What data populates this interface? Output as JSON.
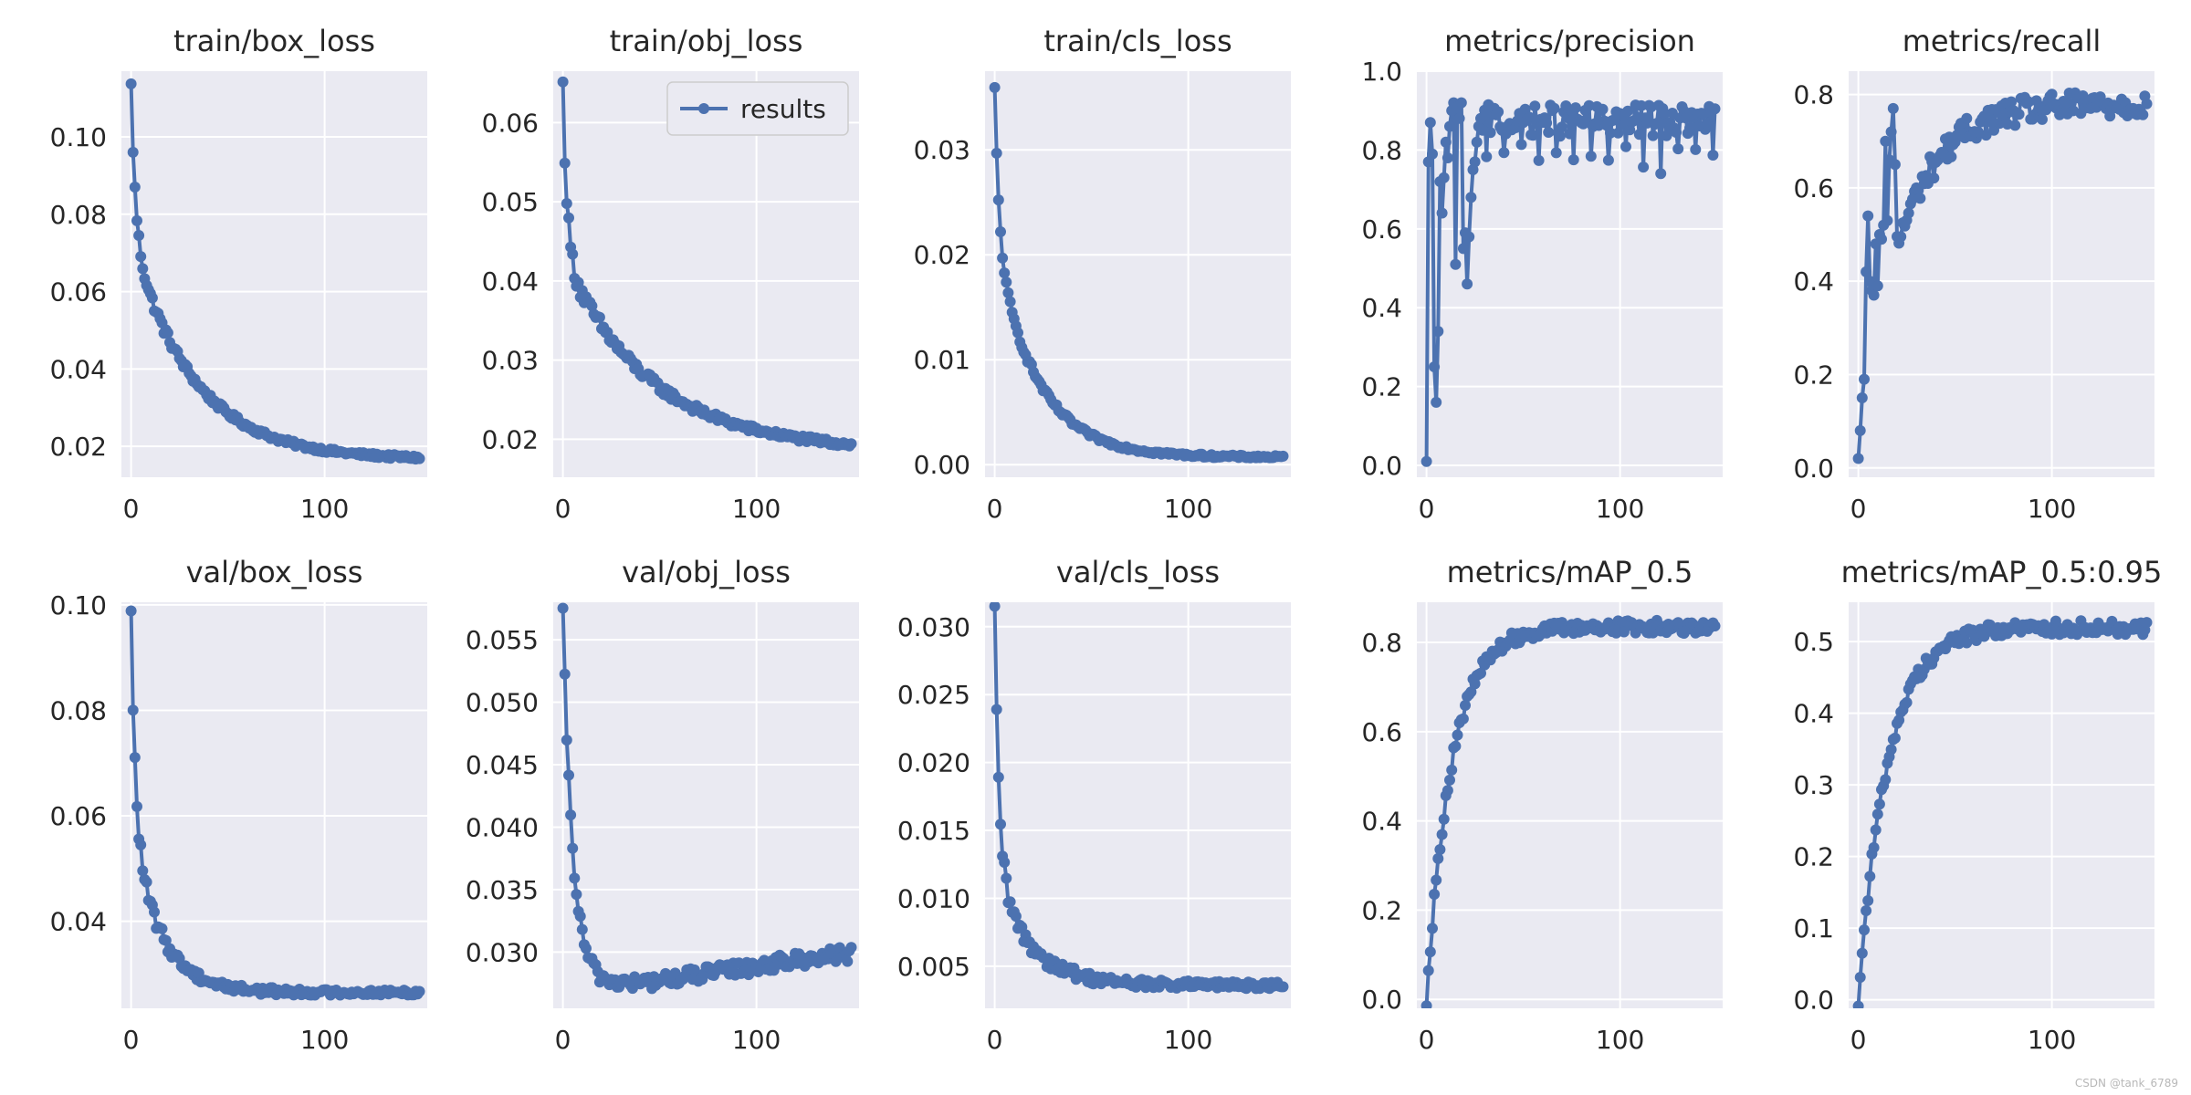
{
  "figure": {
    "watermark": "CSDN @tank_6789",
    "line_color": "#4c72b0",
    "axes_bg": "#eaeaf2",
    "grid_color": "#ffffff"
  },
  "chart_data": [
    {
      "type": "line",
      "title": "train/box_loss",
      "xlim": [
        -5,
        153
      ],
      "ylim": [
        0.012,
        0.117
      ],
      "xticks": [
        0,
        100
      ],
      "yticks": [
        0.02,
        0.04,
        0.06,
        0.08,
        0.1
      ],
      "ytick_labels": [
        "0.02",
        "0.04",
        "0.06",
        "0.08",
        "0.10"
      ],
      "series": [
        {
          "name": "results",
          "shape": "decay",
          "start": 0.113,
          "end": 0.0165,
          "knee": 0.074,
          "tau": 32,
          "noise": 0.0012,
          "n": 150
        }
      ]
    },
    {
      "type": "line",
      "title": "train/obj_loss",
      "xlim": [
        -5,
        153
      ],
      "ylim": [
        0.0152,
        0.0665
      ],
      "xticks": [
        0,
        100
      ],
      "yticks": [
        0.02,
        0.03,
        0.04,
        0.05,
        0.06
      ],
      "ytick_labels": [
        "0.02",
        "0.03",
        "0.04",
        "0.05",
        "0.06"
      ],
      "legend": {
        "label": "results",
        "location": "upper right"
      },
      "series": [
        {
          "name": "results",
          "shape": "decay",
          "start": 0.0645,
          "end": 0.0185,
          "knee": 0.043,
          "tau": 45,
          "noise": 0.0009,
          "n": 150
        }
      ]
    },
    {
      "type": "line",
      "title": "train/cls_loss",
      "xlim": [
        -5,
        153
      ],
      "ylim": [
        -0.0012,
        0.0375
      ],
      "xticks": [
        0,
        100
      ],
      "yticks": [
        0.0,
        0.01,
        0.02,
        0.03
      ],
      "ytick_labels": [
        "0.00",
        "0.01",
        "0.02",
        "0.03"
      ],
      "series": [
        {
          "name": "results",
          "shape": "decay",
          "start": 0.0357,
          "end": 0.0007,
          "knee": 0.021,
          "tau": 22,
          "noise": 0.0003,
          "n": 150
        }
      ]
    },
    {
      "type": "line",
      "title": "metrics/precision",
      "xlim": [
        -5,
        153
      ],
      "ylim": [
        -0.03,
        1.0
      ],
      "xticks": [
        0,
        100
      ],
      "yticks": [
        0.0,
        0.2,
        0.4,
        0.6,
        0.8,
        1.0
      ],
      "ytick_labels": [
        "0.0",
        "0.2",
        "0.4",
        "0.6",
        "0.8",
        "1.0"
      ],
      "series": [
        {
          "name": "results",
          "shape": "volatile",
          "start": 0.01,
          "plateau": 0.875,
          "noise": 0.04,
          "n": 150,
          "early": [
            0.01,
            0.77,
            0.87,
            0.79,
            0.25,
            0.16,
            0.34,
            0.72,
            0.64,
            0.73,
            0.82,
            0.78,
            0.86,
            0.9,
            0.92,
            0.51,
            0.91,
            0.88,
            0.92,
            0.55,
            0.59,
            0.46,
            0.58,
            0.68,
            0.75,
            0.77,
            0.82,
            0.86,
            0.88,
            0.85
          ]
        }
      ]
    },
    {
      "type": "line",
      "title": "metrics/recall",
      "xlim": [
        -5,
        153
      ],
      "ylim": [
        -0.02,
        0.85
      ],
      "xticks": [
        0,
        100
      ],
      "yticks": [
        0.0,
        0.2,
        0.4,
        0.6,
        0.8
      ],
      "ytick_labels": [
        "0.0",
        "0.2",
        "0.4",
        "0.6",
        "0.8"
      ],
      "series": [
        {
          "name": "results",
          "shape": "rise",
          "start": 0.02,
          "plateau": 0.78,
          "tau": 22,
          "noise": 0.03,
          "n": 150,
          "early": [
            0.02,
            0.08,
            0.15,
            0.19,
            0.42,
            0.54,
            0.4,
            0.38,
            0.37,
            0.48,
            0.39,
            0.5,
            0.49,
            0.52,
            0.7,
            0.53,
            0.66,
            0.72,
            0.77,
            0.65
          ]
        }
      ]
    },
    {
      "type": "line",
      "title": "val/box_loss",
      "xlim": [
        -5,
        153
      ],
      "ylim": [
        0.0235,
        0.1005
      ],
      "xticks": [
        0,
        100
      ],
      "yticks": [
        0.04,
        0.06,
        0.08,
        0.1
      ],
      "ytick_labels": [
        "0.04",
        "0.06",
        "0.08",
        "0.10"
      ],
      "series": [
        {
          "name": "results",
          "shape": "decay",
          "start": 0.0975,
          "end": 0.0265,
          "knee": 0.058,
          "tau": 15,
          "noise": 0.0012,
          "n": 150
        }
      ]
    },
    {
      "type": "line",
      "title": "val/obj_loss",
      "xlim": [
        -5,
        153
      ],
      "ylim": [
        0.0255,
        0.058
      ],
      "xticks": [
        0,
        100
      ],
      "yticks": [
        0.03,
        0.035,
        0.04,
        0.045,
        0.05,
        0.055
      ],
      "ytick_labels": [
        "0.030",
        "0.035",
        "0.040",
        "0.045",
        "0.050",
        "0.055"
      ],
      "series": [
        {
          "name": "results",
          "shape": "dip",
          "start": 0.057,
          "min": 0.0275,
          "end": 0.0298,
          "tau": 5,
          "noise": 0.0006,
          "n": 150
        }
      ]
    },
    {
      "type": "line",
      "title": "val/cls_loss",
      "xlim": [
        -5,
        153
      ],
      "ylim": [
        0.0019,
        0.0318
      ],
      "xticks": [
        0,
        100
      ],
      "yticks": [
        0.005,
        0.01,
        0.015,
        0.02,
        0.025,
        0.03
      ],
      "ytick_labels": [
        "0.005",
        "0.010",
        "0.015",
        "0.020",
        "0.025",
        "0.030"
      ],
      "series": [
        {
          "name": "results",
          "shape": "decay",
          "start": 0.0307,
          "end": 0.0036,
          "knee": 0.012,
          "tau": 18,
          "noise": 0.0006,
          "n": 150
        }
      ]
    },
    {
      "type": "line",
      "title": "metrics/mAP_0.5",
      "xlim": [
        -5,
        153
      ],
      "ylim": [
        -0.02,
        0.89
      ],
      "xticks": [
        0,
        100
      ],
      "yticks": [
        0.0,
        0.2,
        0.4,
        0.6,
        0.8
      ],
      "ytick_labels": [
        "0.0",
        "0.2",
        "0.4",
        "0.6",
        "0.8"
      ],
      "series": [
        {
          "name": "results",
          "shape": "rise",
          "start": 0.0,
          "plateau": 0.835,
          "tau": 13,
          "noise": 0.015,
          "n": 150
        }
      ]
    },
    {
      "type": "line",
      "title": "metrics/mAP_0.5:0.95",
      "xlim": [
        -5,
        153
      ],
      "ylim": [
        -0.012,
        0.555
      ],
      "xticks": [
        0,
        100
      ],
      "yticks": [
        0.0,
        0.1,
        0.2,
        0.3,
        0.4,
        0.5
      ],
      "ytick_labels": [
        "0.0",
        "0.1",
        "0.2",
        "0.3",
        "0.4",
        "0.5"
      ],
      "series": [
        {
          "name": "results",
          "shape": "rise",
          "start": 0.0,
          "plateau": 0.52,
          "tau": 15,
          "noise": 0.01,
          "n": 150
        }
      ]
    }
  ]
}
